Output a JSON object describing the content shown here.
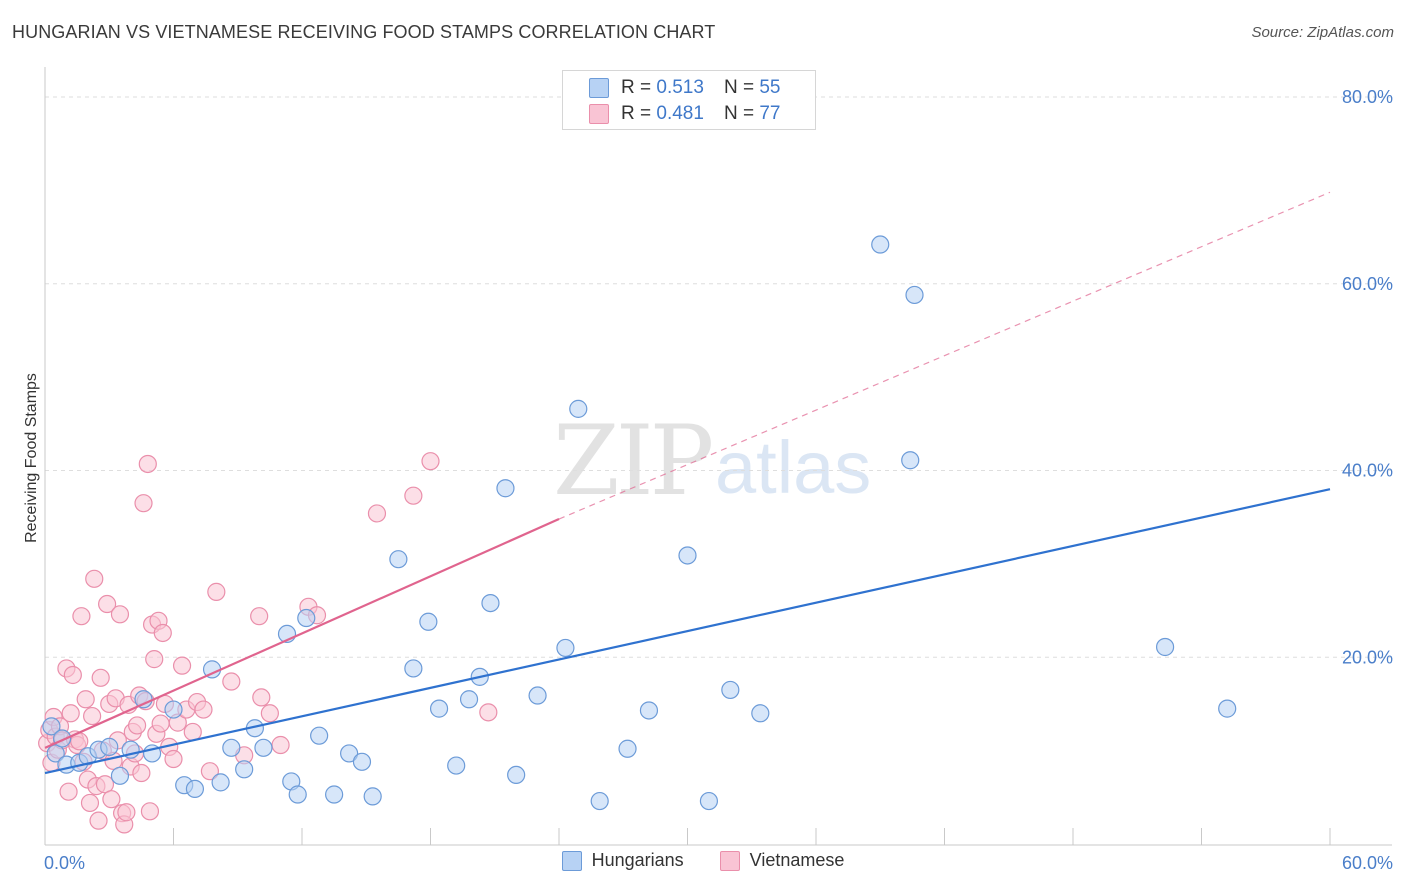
{
  "header": {
    "title": "HUNGARIAN VS VIETNAMESE RECEIVING FOOD STAMPS CORRELATION CHART",
    "source": "Source: ZipAtlas.com"
  },
  "watermark": {
    "zip": "ZIP",
    "atlas": "atlas"
  },
  "legend": {
    "rows": [
      {
        "r_label": "R =",
        "r_value": "0.513",
        "n_label": "N =",
        "n_value": "55"
      },
      {
        "r_label": "R =",
        "r_value": "0.481",
        "n_label": "N =",
        "n_value": "77"
      }
    ]
  },
  "bottom_legend": [
    "Hungarians",
    "Vietnamese"
  ],
  "colors": {
    "blue_fill": "#b7d2f4",
    "blue_stroke": "#6c9bd8",
    "blue_line": "#2f72cf",
    "pink_fill": "#f9c4d4",
    "pink_stroke": "#ea8fab",
    "pink_line": "#e0648e",
    "grid": "#dedede",
    "tick_text": "#4a7ec9"
  },
  "chart_data": {
    "type": "scatter",
    "title": "HUNGARIAN VS VIETNAMESE RECEIVING FOOD STAMPS CORRELATION CHART",
    "xlabel": "",
    "ylabel": "Receiving Food Stamps",
    "xlim": [
      0,
      60
    ],
    "ylim": [
      0,
      80
    ],
    "x_tick_labels": [
      "0.0%",
      "60.0%"
    ],
    "y_ticks": [
      20,
      40,
      60,
      80
    ],
    "y_tick_labels": [
      "20.0%",
      "40.0%",
      "60.0%",
      "80.0%"
    ],
    "grid": true,
    "series": [
      {
        "name": "Hungarians",
        "R": 0.513,
        "N": 55,
        "trend": {
          "x": [
            0,
            60
          ],
          "y": [
            7.6,
            38.0
          ],
          "style": "solid"
        },
        "points": [
          [
            0.3,
            12.6
          ],
          [
            0.5,
            9.7
          ],
          [
            0.8,
            11.3
          ],
          [
            1.0,
            8.5
          ],
          [
            1.6,
            8.7
          ],
          [
            2.0,
            9.4
          ],
          [
            2.5,
            10.1
          ],
          [
            3.0,
            10.4
          ],
          [
            3.5,
            7.3
          ],
          [
            4.0,
            10.1
          ],
          [
            4.6,
            15.5
          ],
          [
            5.0,
            9.7
          ],
          [
            6.0,
            14.4
          ],
          [
            6.5,
            6.3
          ],
          [
            7.0,
            5.9
          ],
          [
            7.8,
            18.7
          ],
          [
            8.2,
            6.6
          ],
          [
            8.7,
            10.3
          ],
          [
            9.3,
            8.0
          ],
          [
            9.8,
            12.4
          ],
          [
            10.2,
            10.3
          ],
          [
            11.3,
            22.5
          ],
          [
            11.5,
            6.7
          ],
          [
            11.8,
            5.3
          ],
          [
            12.2,
            24.2
          ],
          [
            12.8,
            11.6
          ],
          [
            13.5,
            5.3
          ],
          [
            14.2,
            9.7
          ],
          [
            14.8,
            8.8
          ],
          [
            15.3,
            5.1
          ],
          [
            16.5,
            30.5
          ],
          [
            17.2,
            18.8
          ],
          [
            17.9,
            23.8
          ],
          [
            18.4,
            14.5
          ],
          [
            19.2,
            8.4
          ],
          [
            19.8,
            15.5
          ],
          [
            20.3,
            17.9
          ],
          [
            20.8,
            25.8
          ],
          [
            21.5,
            38.1
          ],
          [
            22.0,
            7.4
          ],
          [
            23.0,
            15.9
          ],
          [
            24.3,
            21.0
          ],
          [
            24.9,
            46.6
          ],
          [
            25.9,
            4.6
          ],
          [
            27.2,
            10.2
          ],
          [
            28.2,
            14.3
          ],
          [
            30.0,
            30.9
          ],
          [
            31.0,
            4.6
          ],
          [
            32.0,
            16.5
          ],
          [
            33.4,
            14.0
          ],
          [
            39.0,
            64.2
          ],
          [
            40.6,
            58.8
          ],
          [
            40.4,
            41.1
          ],
          [
            52.3,
            21.1
          ],
          [
            55.2,
            14.5
          ]
        ]
      },
      {
        "name": "Vietnamese",
        "R": 0.481,
        "N": 77,
        "trend": {
          "x": [
            0,
            24.0
          ],
          "y": [
            10.3,
            34.8
          ],
          "style": "solid",
          "extension": {
            "x": [
              24.0,
              60
            ],
            "y": [
              34.8,
              69.8
            ],
            "style": "dashed"
          }
        },
        "points": [
          [
            0.1,
            10.8
          ],
          [
            0.2,
            12.2
          ],
          [
            0.3,
            8.7
          ],
          [
            0.4,
            13.6
          ],
          [
            0.5,
            11.5
          ],
          [
            0.6,
            10.1
          ],
          [
            0.7,
            12.6
          ],
          [
            0.8,
            11.1
          ],
          [
            1.0,
            18.8
          ],
          [
            1.1,
            5.6
          ],
          [
            1.2,
            14.0
          ],
          [
            1.3,
            18.1
          ],
          [
            1.4,
            11.2
          ],
          [
            1.5,
            10.6
          ],
          [
            1.6,
            11.0
          ],
          [
            1.7,
            24.4
          ],
          [
            1.8,
            8.8
          ],
          [
            1.9,
            15.5
          ],
          [
            2.0,
            6.9
          ],
          [
            2.1,
            4.4
          ],
          [
            2.2,
            13.7
          ],
          [
            2.3,
            28.4
          ],
          [
            2.4,
            6.2
          ],
          [
            2.5,
            2.5
          ],
          [
            2.6,
            17.8
          ],
          [
            2.7,
            10.0
          ],
          [
            2.8,
            6.4
          ],
          [
            2.9,
            25.7
          ],
          [
            3.0,
            15.0
          ],
          [
            3.1,
            4.8
          ],
          [
            3.2,
            8.9
          ],
          [
            3.3,
            15.6
          ],
          [
            3.4,
            11.1
          ],
          [
            3.5,
            24.6
          ],
          [
            3.6,
            3.3
          ],
          [
            3.7,
            2.1
          ],
          [
            3.8,
            3.4
          ],
          [
            3.9,
            14.9
          ],
          [
            4.0,
            8.3
          ],
          [
            4.1,
            12.0
          ],
          [
            4.2,
            9.7
          ],
          [
            4.3,
            12.7
          ],
          [
            4.4,
            15.9
          ],
          [
            4.5,
            7.6
          ],
          [
            4.6,
            36.5
          ],
          [
            4.7,
            15.3
          ],
          [
            4.8,
            40.7
          ],
          [
            4.9,
            3.5
          ],
          [
            5.0,
            23.5
          ],
          [
            5.1,
            19.8
          ],
          [
            5.2,
            11.8
          ],
          [
            5.3,
            23.9
          ],
          [
            5.4,
            12.9
          ],
          [
            5.5,
            22.6
          ],
          [
            5.6,
            15.0
          ],
          [
            5.8,
            10.4
          ],
          [
            6.0,
            9.1
          ],
          [
            6.2,
            13.0
          ],
          [
            6.4,
            19.1
          ],
          [
            6.6,
            14.4
          ],
          [
            6.9,
            12.0
          ],
          [
            7.1,
            15.2
          ],
          [
            7.4,
            14.4
          ],
          [
            7.7,
            7.8
          ],
          [
            8.0,
            27.0
          ],
          [
            8.7,
            17.4
          ],
          [
            9.3,
            9.5
          ],
          [
            10.0,
            24.4
          ],
          [
            10.1,
            15.7
          ],
          [
            10.5,
            14.0
          ],
          [
            11.0,
            10.6
          ],
          [
            12.3,
            25.4
          ],
          [
            12.7,
            24.5
          ],
          [
            15.5,
            35.4
          ],
          [
            17.2,
            37.3
          ],
          [
            18.0,
            41.0
          ],
          [
            20.7,
            14.1
          ]
        ]
      }
    ]
  }
}
